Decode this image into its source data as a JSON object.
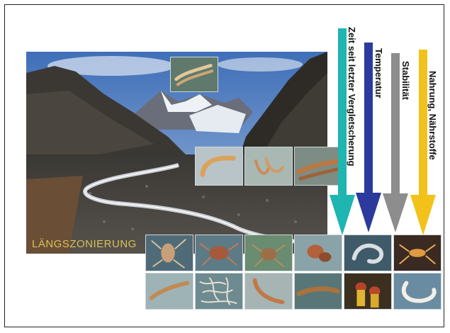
{
  "zonation_label": "LÄNGSZONIERUNG",
  "gradients": [
    {
      "label": "Zeit seit letzter Vergletscherung",
      "color": "#1fb5b0"
    },
    {
      "label": "Temperatur",
      "color": "#2b3a9c"
    },
    {
      "label": "Stabilität",
      "color": "#8d8d8d"
    },
    {
      "label": "Nahrung, Nährstoffe",
      "color": "#f2c21b"
    }
  ],
  "colors": {
    "label_gold": "#d9c15a",
    "sky": "#5b86c4",
    "mountain_dark": "#2f2c28",
    "gravel": "#6b6660"
  },
  "images": {
    "landscape": "glacier-valley-photo",
    "thumbnail_subject": "aquatic-insect-larvae"
  }
}
